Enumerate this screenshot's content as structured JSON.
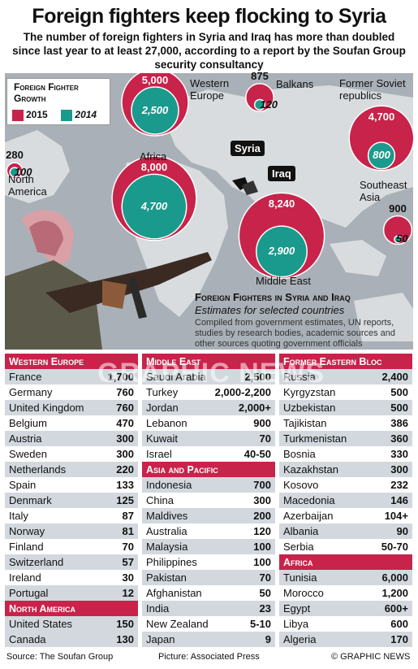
{
  "header": {
    "title": "Foreign fighters keep flocking to Syria",
    "subtitle": "The number of foreign fighters in Syria and Iraq has more than doubled since last year to at least 27,000, according to a report by the Soufan Group security consultancy"
  },
  "legend": {
    "title_line1": "Foreign Fighter",
    "title_line2": "Growth",
    "label_2015": "2015",
    "label_2014": "2014",
    "color_2015": "#c8234a",
    "color_2014": "#1a9a8c"
  },
  "map_labels": {
    "syria": "Syria",
    "iraq": "Iraq"
  },
  "chart_data": {
    "type": "bubble",
    "series": [
      {
        "name": "2015",
        "color": "#c8234a"
      },
      {
        "name": "2014",
        "color": "#1a9a8c"
      }
    ],
    "regions": [
      {
        "name": "Western Europe",
        "label": "Western\nEurope",
        "v2015": 5000,
        "v2015_label": "5,000",
        "v2014": 2500,
        "v2014_label": "2,500"
      },
      {
        "name": "Balkans",
        "label": "Balkans",
        "v2015": 875,
        "v2015_label": "875",
        "v2014": 120,
        "v2014_label": "120"
      },
      {
        "name": "Former Soviet republics",
        "label": "Former Soviet\nrepublics",
        "v2015": 4700,
        "v2015_label": "4,700",
        "v2014": 800,
        "v2014_label": "800"
      },
      {
        "name": "North America",
        "label": "North\nAmerica",
        "v2015": 280,
        "v2015_label": "280",
        "v2014": 100,
        "v2014_label": "100"
      },
      {
        "name": "Africa",
        "label": "Africa",
        "v2015": 8000,
        "v2015_label": "8,000",
        "v2014": 4700,
        "v2014_label": "4,700"
      },
      {
        "name": "Middle East",
        "label": "Middle East",
        "v2015": 8240,
        "v2015_label": "8,240",
        "v2014": 2900,
        "v2014_label": "2,900"
      },
      {
        "name": "Southeast Asia",
        "label": "Southeast\nAsia",
        "v2015": 900,
        "v2015_label": "900",
        "v2014": 50,
        "v2014_label": "50"
      }
    ]
  },
  "section": {
    "title": "Foreign Fighters in Syria and Iraq",
    "subtitle": "Estimates for selected countries",
    "note": "Compiled from government estimates, UN reports, studies by research bodies, academic sources and other sources quoting government officials"
  },
  "tables": {
    "col1": [
      {
        "header": "Western Europe",
        "rows": [
          [
            "France",
            "1,700"
          ],
          [
            "Germany",
            "760"
          ],
          [
            "United Kingdom",
            "760"
          ],
          [
            "Belgium",
            "470"
          ],
          [
            "Austria",
            "300"
          ],
          [
            "Sweden",
            "300"
          ],
          [
            "Netherlands",
            "220"
          ],
          [
            "Spain",
            "133"
          ],
          [
            "Denmark",
            "125"
          ],
          [
            "Italy",
            "87"
          ],
          [
            "Norway",
            "81"
          ],
          [
            "Finland",
            "70"
          ],
          [
            "Switzerland",
            "57"
          ],
          [
            "Ireland",
            "30"
          ],
          [
            "Portugal",
            "12"
          ]
        ]
      },
      {
        "header": "North America",
        "rows": [
          [
            "United States",
            "150"
          ],
          [
            "Canada",
            "130"
          ]
        ]
      }
    ],
    "col2": [
      {
        "header": "Middle East",
        "rows": [
          [
            "Saudi Arabia",
            "2,500"
          ],
          [
            "Turkey",
            "2,000-2,200"
          ],
          [
            "Jordan",
            "2,000+"
          ],
          [
            "Lebanon",
            "900"
          ],
          [
            "Kuwait",
            "70"
          ],
          [
            "Israel",
            "40-50"
          ]
        ]
      },
      {
        "header": "Asia and Pacific",
        "rows": [
          [
            "Indonesia",
            "700"
          ],
          [
            "China",
            "300"
          ],
          [
            "Maldives",
            "200"
          ],
          [
            "Australia",
            "120"
          ],
          [
            "Malaysia",
            "100"
          ],
          [
            "Philippines",
            "100"
          ],
          [
            "Pakistan",
            "70"
          ],
          [
            "Afghanistan",
            "50"
          ],
          [
            "India",
            "23"
          ],
          [
            "New Zealand",
            "5-10"
          ],
          [
            "Japan",
            "9"
          ]
        ]
      }
    ],
    "col3": [
      {
        "header": "Former Eastern Bloc",
        "rows": [
          [
            "Russia",
            "2,400"
          ],
          [
            "Kyrgyzstan",
            "500"
          ],
          [
            "Uzbekistan",
            "500"
          ],
          [
            "Tajikistan",
            "386"
          ],
          [
            "Turkmenistan",
            "360"
          ],
          [
            "Bosnia",
            "330"
          ],
          [
            "Kazakhstan",
            "300"
          ],
          [
            "Kosovo",
            "232"
          ],
          [
            "Macedonia",
            "146"
          ],
          [
            "Azerbaijan",
            "104+"
          ],
          [
            "Albania",
            "90"
          ],
          [
            "Serbia",
            "50-70"
          ]
        ]
      },
      {
        "header": "Africa",
        "rows": [
          [
            "Tunisia",
            "6,000"
          ],
          [
            "Morocco",
            "1,200"
          ],
          [
            "Egypt",
            "600+"
          ],
          [
            "Libya",
            "600"
          ],
          [
            "Algeria",
            "170"
          ]
        ]
      }
    ]
  },
  "footer": {
    "source": "Source: The Soufan Group",
    "picture": "Picture: Associated Press",
    "credit": "© GRAPHIC NEWS"
  },
  "watermark": "GRAPHIC NEWS"
}
